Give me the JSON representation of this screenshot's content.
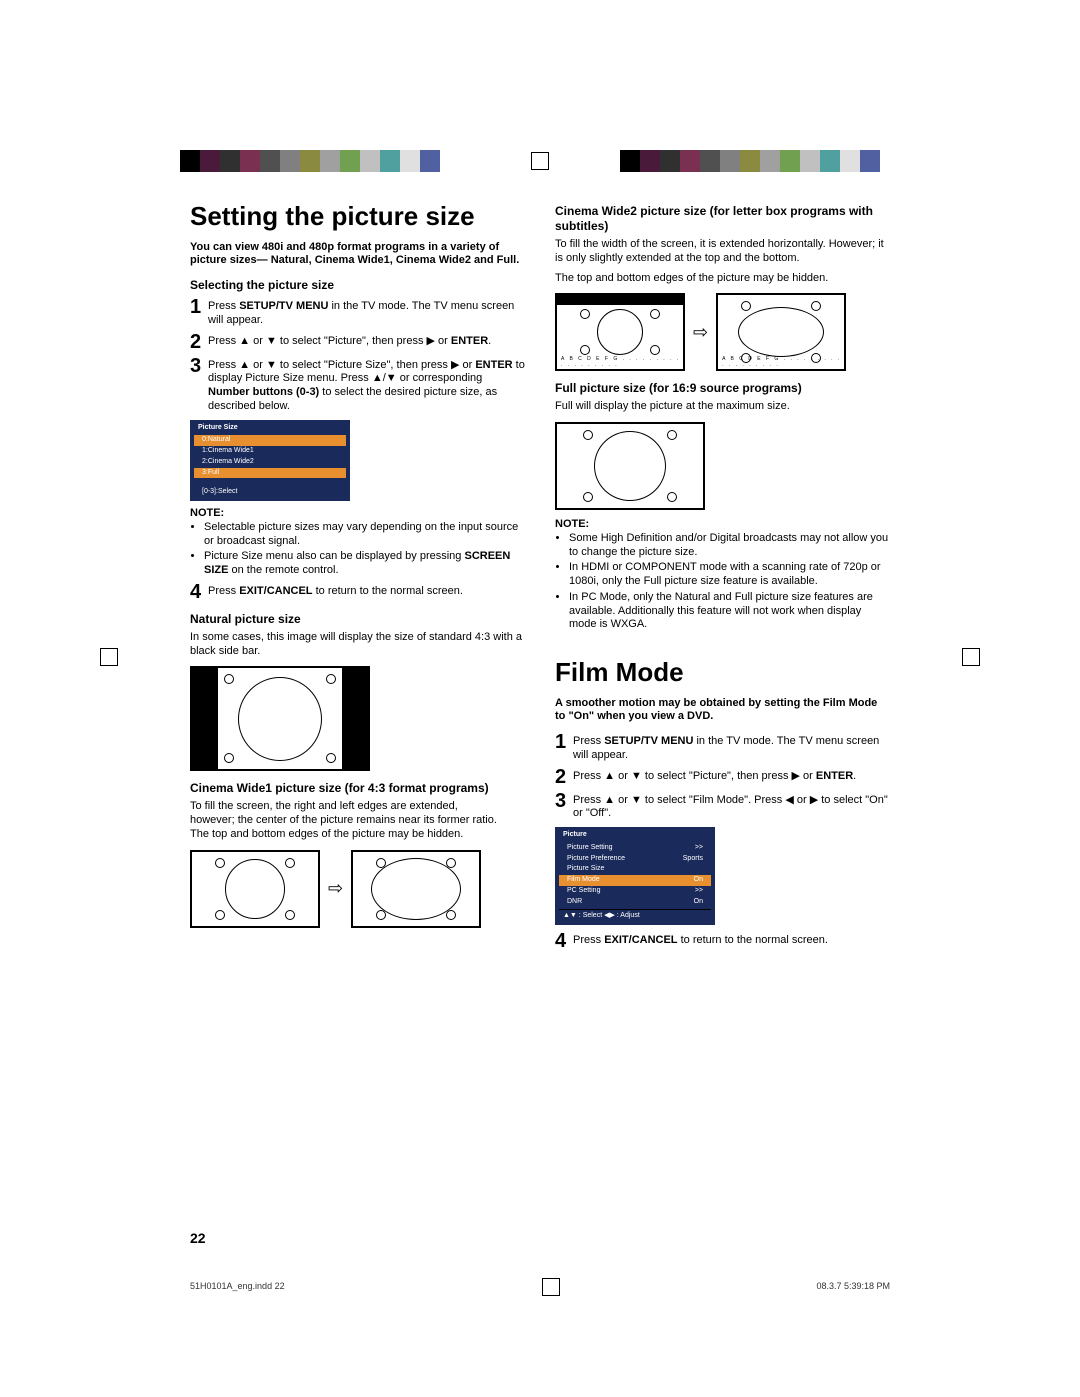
{
  "color_bar": [
    "#000000",
    "#4a1a3a",
    "#303030",
    "#7a3050",
    "#505050",
    "#808080",
    "#8a8a40",
    "#a0a0a0",
    "#70a050",
    "#c0c0c0",
    "#50a0a0",
    "#e0e0e0",
    "#5060a0",
    "#ffffff"
  ],
  "h1a": "Setting the picture size",
  "intro_a": "You can view 480i and 480p format programs in a variety of picture sizes— Natural, Cinema Wide1, Cinema Wide2 and Full.",
  "sub_select": "Selecting the picture size",
  "step_a1": "Press SETUP/TV MENU in the TV mode. The TV menu screen will appear.",
  "step_a2": "Press ▲ or ▼ to select \"Picture\", then press ▶ or ENTER.",
  "step_a3": "Press ▲ or ▼ to select \"Picture Size\", then press ▶ or ENTER to display Picture Size menu. Press ▲/▼ or corresponding Number buttons (0-3) to select the desired picture size, as described below.",
  "osd1": {
    "title": "Picture Size",
    "r0": "0:Natural",
    "r1": "1:Cinema Wide1",
    "r2": "2:Cinema Wide2",
    "r3": "3:Full",
    "foot": "[0-3]:Select"
  },
  "note": "NOTE:",
  "notes_a": [
    "Selectable picture sizes may vary depending on the input source or broadcast signal.",
    "Picture Size menu also can be displayed by pressing SCREEN SIZE on the remote control."
  ],
  "step_a4": "Press EXIT/CANCEL to return to the normal screen.",
  "sub_nat": "Natural picture size",
  "p_nat": "In some cases, this image will display the size of standard 4:3 with a black side bar.",
  "sub_cw1": "Cinema Wide1 picture size (for 4:3 format programs)",
  "p_cw1a": "To fill the screen, the right and left edges are extended,",
  "p_cw1b": "however; the center of the picture remains near its former ratio.",
  "p_cw1c": "The top and bottom edges of the picture may be hidden.",
  "sub_cw2": "Cinema Wide2 picture size (for letter box programs with subtitles)",
  "p_cw2a": "To fill the width of the screen, it is extended horizontally. However; it is only slightly extended at the top and the bottom.",
  "p_cw2b": "The top and bottom edges of the picture may be hidden.",
  "letters": "A B C D E F G . . . . . . . . . . . . . . . . . .",
  "sub_full": "Full picture size (for 16:9 source programs)",
  "p_full": "Full will display the picture at the maximum size.",
  "notes_b": [
    "Some High Definition and/or Digital broadcasts may not allow you to change the picture size.",
    "In HDMI or COMPONENT mode with a scanning rate of 720p or 1080i, only the Full picture size feature is available.",
    "In PC Mode, only the Natural and Full picture size features are available. Additionally this feature will not work when display mode is WXGA."
  ],
  "h1b": "Film Mode",
  "intro_b": "A smoother motion may be obtained by setting the Film Mode to \"On\" when you view a DVD.",
  "step_b1": "Press SETUP/TV MENU in the TV mode. The TV menu screen will appear.",
  "step_b2": "Press ▲ or ▼ to select \"Picture\", then press ▶ or ENTER.",
  "step_b3": "Press ▲ or ▼ to select \"Film Mode\". Press ◀ or ▶ to select \"On\" or \"Off\".",
  "osd2": {
    "title": "Picture",
    "r1l": "Picture Setting",
    "r1r": ">>",
    "r2l": "Picture Preference",
    "r2r": "Sports",
    "r3l": "Picture Size",
    "r3r": "",
    "r4l": "Film Mode",
    "r4r": "On",
    "r5l": "PC Setting",
    "r5r": ">>",
    "r6l": "DNR",
    "r6r": "On",
    "foot": "▲▼ : Select    ◀▶ : Adjust"
  },
  "step_b4": "Press EXIT/CANCEL to return to the normal screen.",
  "page_num": "22",
  "footer_left": "51H0101A_eng.indd   22",
  "footer_right": "08.3.7   5:39:18 PM"
}
